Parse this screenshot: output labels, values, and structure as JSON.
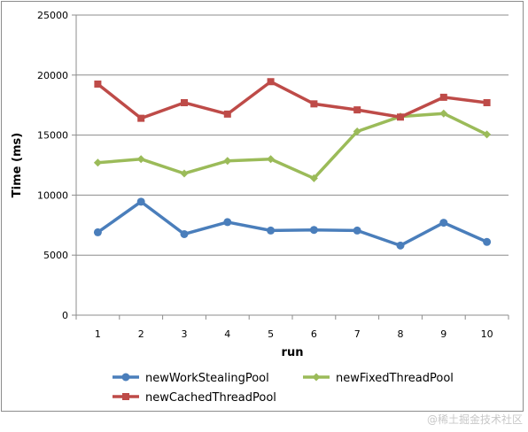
{
  "chart_data": {
    "type": "line",
    "title": "",
    "xlabel": "run",
    "ylabel": "Time (ms)",
    "categories": [
      "1",
      "2",
      "3",
      "4",
      "5",
      "6",
      "7",
      "8",
      "9",
      "10"
    ],
    "yticks": [
      "0",
      "5000",
      "10000",
      "15000",
      "20000",
      "25000"
    ],
    "ylim": [
      0,
      25000
    ],
    "grid": true,
    "legend_position": "bottom",
    "series": [
      {
        "name": "newWorkStealingPool",
        "color": "#4a7ebb",
        "marker": "circle",
        "values": [
          6900,
          9450,
          6750,
          7750,
          7050,
          7100,
          7050,
          5800,
          7700,
          6100
        ]
      },
      {
        "name": "newFixedThreadPool",
        "color": "#9bbb59",
        "marker": "diamond",
        "values": [
          12700,
          13000,
          11800,
          12850,
          13000,
          11400,
          15300,
          16550,
          16800,
          15050
        ]
      },
      {
        "name": "newCachedThreadPool",
        "color": "#be4b48",
        "marker": "square",
        "values": [
          19250,
          16400,
          17700,
          16750,
          19450,
          17600,
          17100,
          16500,
          18150,
          17700
        ]
      }
    ]
  },
  "watermark": "@稀土掘金技术社区"
}
